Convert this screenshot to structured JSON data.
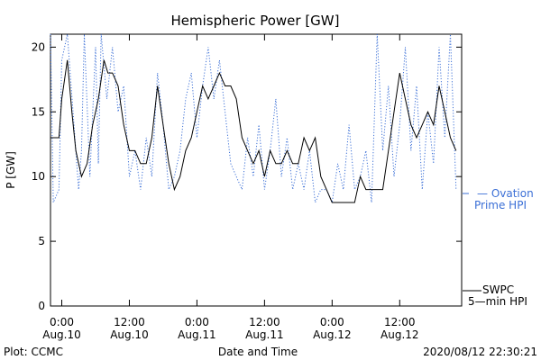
{
  "chart_data": {
    "type": "line",
    "title": "Hemispheric Power [GW]",
    "ylabel": "P [GW]",
    "xlabel": "Date and Time",
    "ylim": [
      0,
      21
    ],
    "yticks": [
      0,
      5,
      10,
      15,
      20
    ],
    "xlim_hours": [
      -2,
      71
    ],
    "x_ticks": [
      {
        "hour": 0,
        "time": "0:00",
        "date": "Aug.10"
      },
      {
        "hour": 12,
        "time": "12:00",
        "date": "Aug.10"
      },
      {
        "hour": 24,
        "time": "0:00",
        "date": "Aug.11"
      },
      {
        "hour": 36,
        "time": "12:00",
        "date": "Aug.11"
      },
      {
        "hour": 48,
        "time": "0:00",
        "date": "Aug.12"
      },
      {
        "hour": 60,
        "time": "12:00",
        "date": "Aug.12"
      }
    ],
    "series": [
      {
        "name": "SWPC 5-min HPI",
        "color": "#000000",
        "style": "solid",
        "x": [
          -2,
          -0.5,
          0,
          1,
          1.8,
          2.5,
          3.5,
          4.5,
          5.5,
          6.5,
          7.5,
          8.2,
          9,
          10,
          11,
          12,
          13,
          14,
          15,
          16,
          17,
          18,
          19,
          20,
          21,
          22,
          23,
          24,
          25,
          26,
          27,
          28,
          29,
          30,
          31,
          32,
          33,
          34,
          35,
          36,
          37,
          38,
          39,
          40,
          41,
          42,
          43,
          44,
          45,
          46,
          47,
          48,
          49,
          50,
          51,
          52,
          53,
          54,
          55,
          56,
          57,
          58,
          59,
          60,
          61,
          62,
          63,
          64,
          65,
          66,
          67,
          68,
          69,
          70
        ],
        "y": [
          13,
          13,
          16,
          19,
          15,
          12,
          10,
          11,
          14,
          16,
          19,
          18,
          18,
          17,
          14,
          12,
          12,
          11,
          11,
          13,
          17,
          14,
          11,
          9,
          10,
          12,
          13,
          15,
          17,
          16,
          17,
          18,
          17,
          17,
          16,
          13,
          12,
          11,
          12,
          10,
          12,
          11,
          11,
          12,
          11,
          11,
          13,
          12,
          13,
          10,
          9,
          8,
          8,
          8,
          8,
          8,
          10,
          9,
          9,
          9,
          9,
          12,
          15,
          18,
          16,
          14,
          13,
          14,
          15,
          14,
          17,
          15,
          13,
          12
        ],
        "breaks_hours": [
          [
            52.5,
            58.5
          ]
        ]
      },
      {
        "name": "Ovation Prime HPI",
        "color": "#3b6fd6",
        "style": "dotted",
        "x": [
          -2,
          -1.5,
          -0.5,
          0,
          1,
          2,
          3,
          3.5,
          4,
          5,
          6,
          6.5,
          7,
          8,
          9,
          10,
          11,
          12,
          13,
          14,
          15,
          16,
          17,
          18,
          19,
          20,
          21,
          22,
          23,
          24,
          25,
          26,
          27,
          28,
          29,
          30,
          31,
          32,
          33,
          34,
          35,
          36,
          37,
          38,
          39,
          40,
          41,
          42,
          43,
          44,
          45,
          46,
          47,
          48,
          49,
          50,
          51,
          52,
          53,
          54,
          55,
          56,
          57,
          58,
          59,
          60,
          61,
          62,
          63,
          64,
          65,
          66,
          67,
          68,
          69,
          70
        ],
        "y": [
          21,
          8,
          9,
          19,
          21,
          15,
          9,
          12,
          21,
          10,
          20,
          11,
          21,
          16,
          20,
          15,
          17,
          10,
          12,
          9,
          13,
          10,
          18,
          14,
          9,
          10,
          12,
          16,
          18,
          13,
          17,
          20,
          16,
          19,
          15,
          11,
          10,
          9,
          13,
          10,
          14,
          9,
          12,
          16,
          10,
          13,
          9,
          11,
          9,
          12,
          8,
          9,
          9,
          8,
          11,
          9,
          14,
          9,
          10,
          12,
          8,
          21,
          12,
          17,
          10,
          14,
          20,
          12,
          17,
          9,
          15,
          11,
          20,
          13,
          21,
          9
        ]
      }
    ],
    "legend": [
      {
        "line1": "— Ovation",
        "line2": "Prime HPI",
        "color": "#3b6fd6",
        "position": "right"
      },
      {
        "line1": "SWPC",
        "line2": "5—min HPI",
        "color": "#000000",
        "position": "right"
      }
    ]
  },
  "footer": {
    "left": "Plot: CCMC",
    "right": "2020/08/12 22:30:21"
  }
}
